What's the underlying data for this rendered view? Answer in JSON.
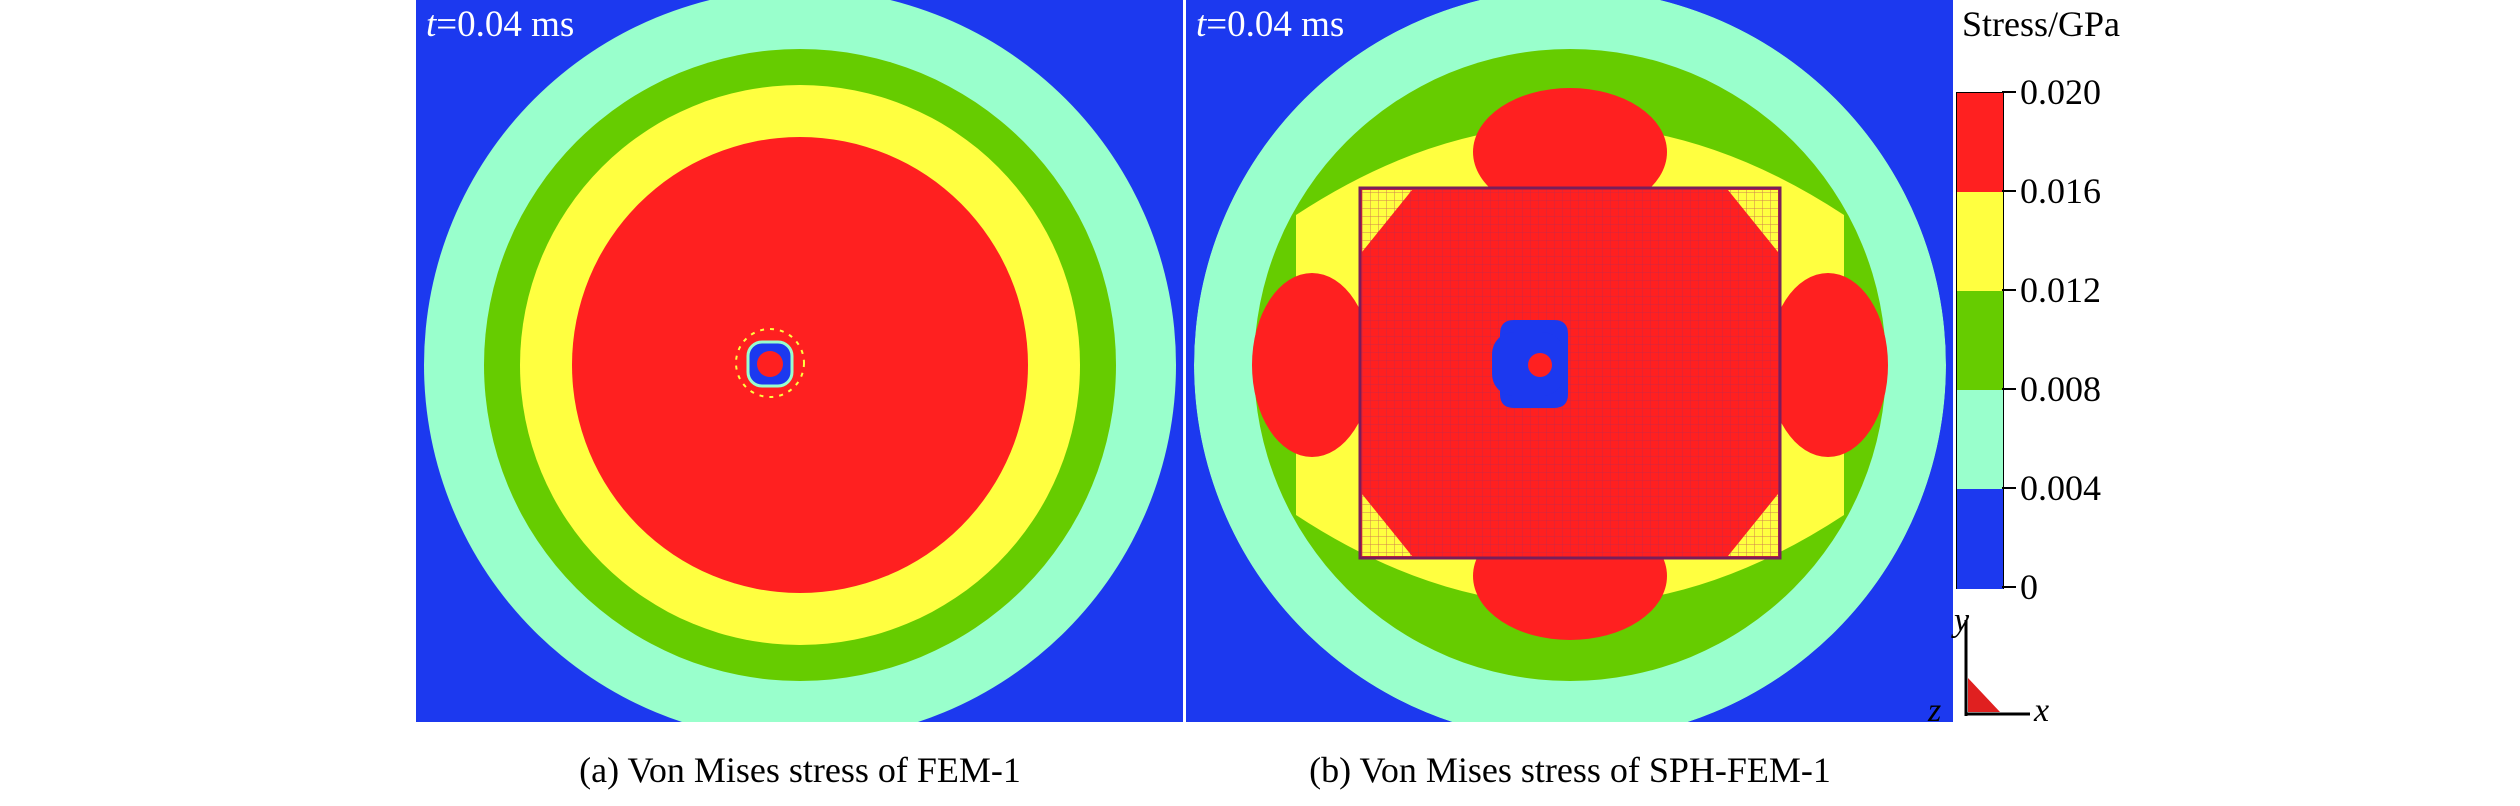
{
  "panels": [
    {
      "time_var": "t",
      "time_text": "=0.04 ms",
      "caption": "(a) Von Mises stress of FEM-1"
    },
    {
      "time_var": "t",
      "time_text": "=0.04 ms",
      "caption": "(b) Von Mises stress of SPH-FEM-1"
    }
  ],
  "legend": {
    "title": "Stress/GPa",
    "ticks": [
      "0.020",
      "0.016",
      "0.012",
      "0.008",
      "0.004",
      "0"
    ],
    "colors": [
      "#ff2020",
      "#ffff40",
      "#66cc00",
      "#99ffcc",
      "#1c39ef"
    ]
  },
  "axes": {
    "y": "y",
    "z": "z",
    "x": "x"
  }
}
